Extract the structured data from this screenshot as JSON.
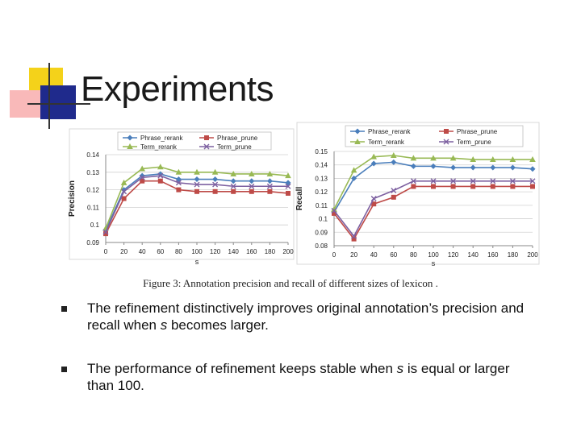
{
  "slide": {
    "title": "Experiments",
    "caption": "Figure 3: Annotation precision and recall of different sizes of lexicon .",
    "bullets": [
      {
        "before": "The refinement distinctively improves original annotation’s precision and recall when ",
        "emph": "s",
        "after": " becomes larger."
      },
      {
        "before": "The performance of refinement keeps stable when ",
        "emph": "s",
        "after": " is equal or larger than 100."
      }
    ]
  },
  "colors": {
    "phrase_rerank": "#4a7ebb",
    "phrase_prune": "#be4b48",
    "term_rerank": "#98b954",
    "term_prune": "#7d60a0"
  },
  "chart_data": [
    {
      "type": "line",
      "title": "",
      "xlabel": "s",
      "ylabel": "Precision",
      "x": [
        0,
        20,
        40,
        60,
        80,
        100,
        120,
        140,
        160,
        180,
        200
      ],
      "xticks": [
        "0",
        "20",
        "40",
        "60",
        "80",
        "100",
        "120",
        "140",
        "160",
        "180",
        "200"
      ],
      "ylim": [
        0.09,
        0.14
      ],
      "yticks": [
        "0.09",
        "0.1",
        "0.11",
        "0.12",
        "0.13",
        "0.14"
      ],
      "legend": [
        "Phrase_rerank",
        "Phrase_prune",
        "Term_rerank",
        "Term_prune"
      ],
      "legend_position": "top",
      "series": [
        {
          "name": "Phrase_rerank",
          "marker": "diamond",
          "values": [
            0.097,
            0.12,
            0.128,
            0.129,
            0.126,
            0.126,
            0.126,
            0.125,
            0.125,
            0.125,
            0.124
          ]
        },
        {
          "name": "Phrase_prune",
          "marker": "square",
          "values": [
            0.095,
            0.115,
            0.125,
            0.125,
            0.12,
            0.119,
            0.119,
            0.119,
            0.119,
            0.119,
            0.118
          ]
        },
        {
          "name": "Term_rerank",
          "marker": "triangle",
          "values": [
            0.098,
            0.124,
            0.132,
            0.133,
            0.13,
            0.13,
            0.13,
            0.129,
            0.129,
            0.129,
            0.128
          ]
        },
        {
          "name": "Term_prune",
          "marker": "x",
          "values": [
            0.096,
            0.119,
            0.127,
            0.128,
            0.124,
            0.123,
            0.123,
            0.122,
            0.122,
            0.122,
            0.122
          ]
        }
      ]
    },
    {
      "type": "line",
      "title": "",
      "xlabel": "s",
      "ylabel": "Recall",
      "x": [
        0,
        20,
        40,
        60,
        80,
        100,
        120,
        140,
        160,
        180,
        200
      ],
      "xticks": [
        "0",
        "20",
        "40",
        "60",
        "80",
        "100",
        "120",
        "140",
        "160",
        "180",
        "200"
      ],
      "ylim": [
        0.08,
        0.15
      ],
      "yticks": [
        "0.08",
        "0.09",
        "0.1",
        "0.11",
        "0.12",
        "0.13",
        "0.14",
        "0.15"
      ],
      "legend": [
        "Phrase_rerank",
        "Phrase_prune",
        "Term_rerank",
        "Term_prune"
      ],
      "legend_position": "top",
      "series": [
        {
          "name": "Phrase_rerank",
          "marker": "diamond",
          "values": [
            0.105,
            0.13,
            0.141,
            0.142,
            0.139,
            0.139,
            0.138,
            0.138,
            0.138,
            0.138,
            0.137
          ]
        },
        {
          "name": "Phrase_prune",
          "marker": "square",
          "values": [
            0.104,
            0.085,
            0.111,
            0.116,
            0.124,
            0.124,
            0.124,
            0.124,
            0.124,
            0.124,
            0.124
          ]
        },
        {
          "name": "Term_rerank",
          "marker": "triangle",
          "values": [
            0.107,
            0.136,
            0.146,
            0.147,
            0.145,
            0.145,
            0.145,
            0.144,
            0.144,
            0.144,
            0.144
          ]
        },
        {
          "name": "Term_prune",
          "marker": "x",
          "values": [
            0.106,
            0.087,
            0.115,
            0.121,
            0.128,
            0.128,
            0.128,
            0.128,
            0.128,
            0.128,
            0.128
          ]
        }
      ]
    }
  ]
}
